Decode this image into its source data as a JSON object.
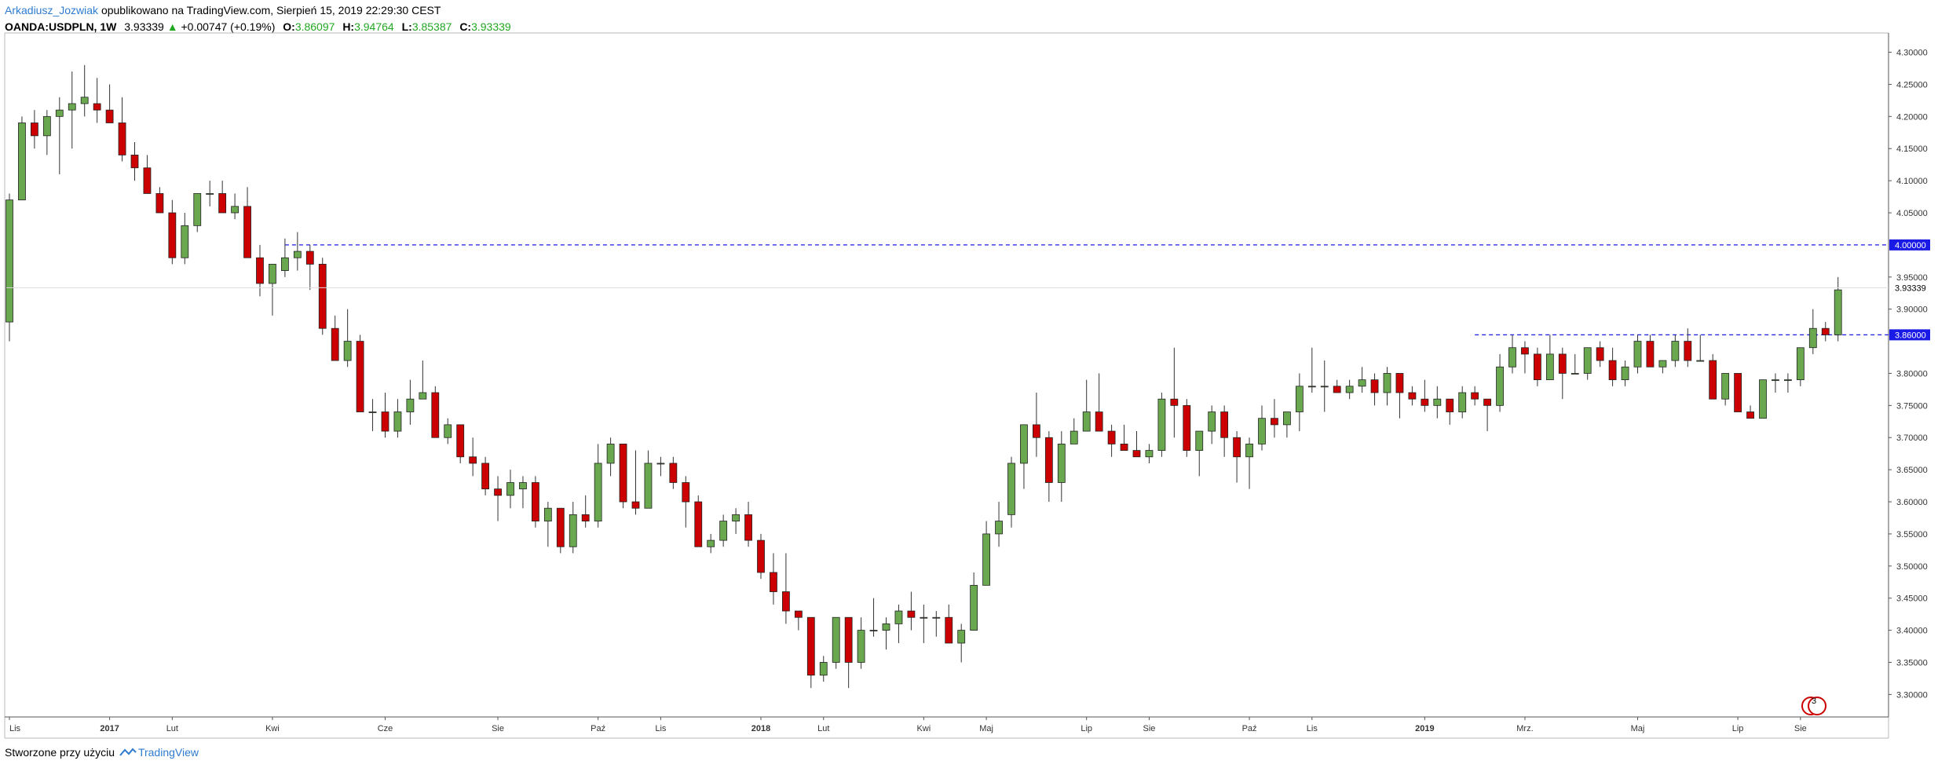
{
  "header": {
    "author": "Arkadiusz_Jozwiak",
    "published": "opublikowano na TradingView.com, Sierpień 15, 2019 22:29:30 CEST",
    "symbol": "OANDA:USDPLN, 1W",
    "last": "3.93339",
    "change": "+0.00747 (+0.19%)",
    "o_label": "O:",
    "o_value": "3.86097",
    "h_label": "H:",
    "h_value": "3.94764",
    "l_label": "L:",
    "l_value": "3.85387",
    "c_label": "C:",
    "c_value": "3.93339"
  },
  "footer": {
    "created_with": "Stworzone przy użyciu",
    "brand": "TradingView"
  },
  "events_badge": "3",
  "chart_data": {
    "type": "candlestick",
    "symbol": "OANDA:USDPLN",
    "interval": "1W",
    "y_range": [
      3.265,
      4.33
    ],
    "y_ticks": [
      4.3,
      4.25,
      4.2,
      4.15,
      4.1,
      4.05,
      3.95,
      3.9,
      3.8,
      3.75,
      3.7,
      3.65,
      3.6,
      3.55,
      3.5,
      3.45,
      3.4,
      3.35,
      3.3
    ],
    "x_labels": [
      {
        "i": 0,
        "text": "Lis"
      },
      {
        "i": 8,
        "text": "2017"
      },
      {
        "i": 13,
        "text": "Lut"
      },
      {
        "i": 21,
        "text": "Kwi"
      },
      {
        "i": 30,
        "text": "Cze"
      },
      {
        "i": 39,
        "text": "Sie"
      },
      {
        "i": 47,
        "text": "Paź"
      },
      {
        "i": 52,
        "text": "Lis"
      },
      {
        "i": 60,
        "text": "2018"
      },
      {
        "i": 65,
        "text": "Lut"
      },
      {
        "i": 73,
        "text": "Kwi"
      },
      {
        "i": 78,
        "text": "Maj"
      },
      {
        "i": 86,
        "text": "Lip"
      },
      {
        "i": 91,
        "text": "Sie"
      },
      {
        "i": 99,
        "text": "Paź"
      },
      {
        "i": 104,
        "text": "Lis"
      },
      {
        "i": 113,
        "text": "2019"
      },
      {
        "i": 121,
        "text": "Mrz."
      },
      {
        "i": 130,
        "text": "Maj"
      },
      {
        "i": 138,
        "text": "Lip"
      },
      {
        "i": 143,
        "text": "Sie"
      }
    ],
    "horizontal_lines": [
      {
        "value": 4.0,
        "label": "4.00000",
        "from_index": 22,
        "color": "#1a1ae6"
      },
      {
        "value": 3.86,
        "label": "3.86000",
        "from_index": 117,
        "color": "#1a1ae6"
      }
    ],
    "last_price": {
      "value": 3.93339,
      "label": "3.93339"
    },
    "colors": {
      "up": "#6aa84f",
      "down": "#cc0000",
      "wick": "#333333",
      "line": "#1a1ae6"
    },
    "candles": [
      [
        3.88,
        4.08,
        3.85,
        4.07
      ],
      [
        4.07,
        4.2,
        4.07,
        4.19
      ],
      [
        4.19,
        4.21,
        4.15,
        4.17
      ],
      [
        4.17,
        4.21,
        4.14,
        4.2
      ],
      [
        4.2,
        4.23,
        4.11,
        4.21
      ],
      [
        4.21,
        4.27,
        4.15,
        4.22
      ],
      [
        4.22,
        4.28,
        4.2,
        4.23
      ],
      [
        4.22,
        4.26,
        4.19,
        4.21
      ],
      [
        4.21,
        4.25,
        4.19,
        4.19
      ],
      [
        4.19,
        4.23,
        4.13,
        4.14
      ],
      [
        4.14,
        4.16,
        4.1,
        4.12
      ],
      [
        4.12,
        4.14,
        4.08,
        4.08
      ],
      [
        4.08,
        4.09,
        4.05,
        4.05
      ],
      [
        4.05,
        4.07,
        3.97,
        3.98
      ],
      [
        3.98,
        4.05,
        3.97,
        4.03
      ],
      [
        4.03,
        4.08,
        4.02,
        4.08
      ],
      [
        4.08,
        4.1,
        4.06,
        4.08
      ],
      [
        4.08,
        4.1,
        4.05,
        4.05
      ],
      [
        4.05,
        4.08,
        4.04,
        4.06
      ],
      [
        4.06,
        4.09,
        3.98,
        3.98
      ],
      [
        3.98,
        4.0,
        3.92,
        3.94
      ],
      [
        3.94,
        3.97,
        3.89,
        3.97
      ],
      [
        3.96,
        4.01,
        3.95,
        3.98
      ],
      [
        3.98,
        4.02,
        3.96,
        3.99
      ],
      [
        3.99,
        4.0,
        3.93,
        3.97
      ],
      [
        3.97,
        3.98,
        3.86,
        3.87
      ],
      [
        3.87,
        3.89,
        3.82,
        3.82
      ],
      [
        3.82,
        3.9,
        3.81,
        3.85
      ],
      [
        3.85,
        3.86,
        3.74,
        3.74
      ],
      [
        3.74,
        3.76,
        3.71,
        3.74
      ],
      [
        3.74,
        3.77,
        3.7,
        3.71
      ],
      [
        3.71,
        3.76,
        3.7,
        3.74
      ],
      [
        3.74,
        3.79,
        3.72,
        3.76
      ],
      [
        3.76,
        3.82,
        3.76,
        3.77
      ],
      [
        3.77,
        3.78,
        3.7,
        3.7
      ],
      [
        3.7,
        3.73,
        3.69,
        3.72
      ],
      [
        3.72,
        3.72,
        3.66,
        3.67
      ],
      [
        3.67,
        3.7,
        3.64,
        3.66
      ],
      [
        3.66,
        3.67,
        3.61,
        3.62
      ],
      [
        3.62,
        3.64,
        3.57,
        3.61
      ],
      [
        3.61,
        3.65,
        3.59,
        3.63
      ],
      [
        3.62,
        3.64,
        3.59,
        3.63
      ],
      [
        3.63,
        3.64,
        3.56,
        3.57
      ],
      [
        3.57,
        3.6,
        3.53,
        3.59
      ],
      [
        3.59,
        3.59,
        3.52,
        3.53
      ],
      [
        3.53,
        3.6,
        3.52,
        3.58
      ],
      [
        3.58,
        3.61,
        3.56,
        3.57
      ],
      [
        3.57,
        3.69,
        3.56,
        3.66
      ],
      [
        3.66,
        3.7,
        3.64,
        3.69
      ],
      [
        3.69,
        3.69,
        3.59,
        3.6
      ],
      [
        3.6,
        3.68,
        3.58,
        3.59
      ],
      [
        3.59,
        3.68,
        3.59,
        3.66
      ],
      [
        3.66,
        3.67,
        3.64,
        3.66
      ],
      [
        3.66,
        3.67,
        3.62,
        3.63
      ],
      [
        3.63,
        3.64,
        3.56,
        3.6
      ],
      [
        3.6,
        3.61,
        3.53,
        3.53
      ],
      [
        3.53,
        3.55,
        3.52,
        3.54
      ],
      [
        3.54,
        3.58,
        3.53,
        3.57
      ],
      [
        3.57,
        3.59,
        3.55,
        3.58
      ],
      [
        3.58,
        3.6,
        3.53,
        3.54
      ],
      [
        3.54,
        3.55,
        3.48,
        3.49
      ],
      [
        3.49,
        3.52,
        3.44,
        3.46
      ],
      [
        3.46,
        3.52,
        3.41,
        3.43
      ],
      [
        3.43,
        3.43,
        3.4,
        3.42
      ],
      [
        3.42,
        3.42,
        3.31,
        3.33
      ],
      [
        3.33,
        3.36,
        3.32,
        3.35
      ],
      [
        3.35,
        3.42,
        3.34,
        3.42
      ],
      [
        3.42,
        3.42,
        3.31,
        3.35
      ],
      [
        3.35,
        3.42,
        3.34,
        3.4
      ],
      [
        3.4,
        3.45,
        3.39,
        3.4
      ],
      [
        3.4,
        3.42,
        3.37,
        3.41
      ],
      [
        3.41,
        3.44,
        3.38,
        3.43
      ],
      [
        3.43,
        3.46,
        3.4,
        3.42
      ],
      [
        3.42,
        3.44,
        3.38,
        3.42
      ],
      [
        3.42,
        3.43,
        3.39,
        3.42
      ],
      [
        3.42,
        3.44,
        3.38,
        3.38
      ],
      [
        3.38,
        3.41,
        3.35,
        3.4
      ],
      [
        3.4,
        3.49,
        3.4,
        3.47
      ],
      [
        3.47,
        3.57,
        3.47,
        3.55
      ],
      [
        3.55,
        3.6,
        3.53,
        3.57
      ],
      [
        3.58,
        3.67,
        3.56,
        3.66
      ],
      [
        3.66,
        3.72,
        3.62,
        3.72
      ],
      [
        3.72,
        3.77,
        3.67,
        3.7
      ],
      [
        3.7,
        3.71,
        3.6,
        3.63
      ],
      [
        3.63,
        3.71,
        3.6,
        3.69
      ],
      [
        3.69,
        3.73,
        3.69,
        3.71
      ],
      [
        3.71,
        3.79,
        3.71,
        3.74
      ],
      [
        3.74,
        3.8,
        3.71,
        3.71
      ],
      [
        3.71,
        3.72,
        3.67,
        3.69
      ],
      [
        3.69,
        3.72,
        3.68,
        3.68
      ],
      [
        3.68,
        3.71,
        3.67,
        3.67
      ],
      [
        3.67,
        3.69,
        3.66,
        3.68
      ],
      [
        3.68,
        3.77,
        3.67,
        3.76
      ],
      [
        3.76,
        3.84,
        3.7,
        3.75
      ],
      [
        3.75,
        3.76,
        3.67,
        3.68
      ],
      [
        3.68,
        3.71,
        3.64,
        3.71
      ],
      [
        3.71,
        3.75,
        3.69,
        3.74
      ],
      [
        3.74,
        3.75,
        3.67,
        3.7
      ],
      [
        3.7,
        3.71,
        3.63,
        3.67
      ],
      [
        3.67,
        3.7,
        3.62,
        3.69
      ],
      [
        3.69,
        3.75,
        3.68,
        3.73
      ],
      [
        3.73,
        3.76,
        3.7,
        3.72
      ],
      [
        3.72,
        3.74,
        3.7,
        3.74
      ],
      [
        3.74,
        3.8,
        3.71,
        3.78
      ],
      [
        3.78,
        3.84,
        3.77,
        3.78
      ],
      [
        3.78,
        3.82,
        3.74,
        3.78
      ],
      [
        3.78,
        3.79,
        3.77,
        3.77
      ],
      [
        3.77,
        3.79,
        3.76,
        3.78
      ],
      [
        3.78,
        3.81,
        3.77,
        3.79
      ],
      [
        3.79,
        3.8,
        3.75,
        3.77
      ],
      [
        3.77,
        3.81,
        3.75,
        3.8
      ],
      [
        3.8,
        3.8,
        3.73,
        3.77
      ],
      [
        3.77,
        3.78,
        3.75,
        3.76
      ],
      [
        3.76,
        3.79,
        3.74,
        3.75
      ],
      [
        3.75,
        3.78,
        3.73,
        3.76
      ],
      [
        3.76,
        3.76,
        3.72,
        3.74
      ],
      [
        3.74,
        3.78,
        3.73,
        3.77
      ],
      [
        3.77,
        3.78,
        3.75,
        3.76
      ],
      [
        3.76,
        3.76,
        3.71,
        3.75
      ],
      [
        3.75,
        3.83,
        3.74,
        3.81
      ],
      [
        3.81,
        3.86,
        3.8,
        3.84
      ],
      [
        3.84,
        3.85,
        3.8,
        3.83
      ],
      [
        3.83,
        3.84,
        3.78,
        3.79
      ],
      [
        3.79,
        3.86,
        3.79,
        3.83
      ],
      [
        3.83,
        3.84,
        3.76,
        3.8
      ],
      [
        3.8,
        3.83,
        3.8,
        3.8
      ],
      [
        3.8,
        3.84,
        3.79,
        3.84
      ],
      [
        3.84,
        3.85,
        3.81,
        3.82
      ],
      [
        3.82,
        3.84,
        3.78,
        3.79
      ],
      [
        3.79,
        3.82,
        3.78,
        3.81
      ],
      [
        3.81,
        3.86,
        3.8,
        3.85
      ],
      [
        3.85,
        3.86,
        3.81,
        3.81
      ],
      [
        3.81,
        3.82,
        3.8,
        3.82
      ],
      [
        3.82,
        3.86,
        3.81,
        3.85
      ],
      [
        3.85,
        3.87,
        3.81,
        3.82
      ],
      [
        3.82,
        3.86,
        3.82,
        3.82
      ],
      [
        3.82,
        3.83,
        3.76,
        3.76
      ],
      [
        3.76,
        3.8,
        3.75,
        3.8
      ],
      [
        3.8,
        3.8,
        3.74,
        3.74
      ],
      [
        3.74,
        3.75,
        3.73,
        3.73
      ],
      [
        3.73,
        3.79,
        3.73,
        3.79
      ],
      [
        3.79,
        3.8,
        3.77,
        3.79
      ],
      [
        3.79,
        3.8,
        3.77,
        3.79
      ],
      [
        3.79,
        3.84,
        3.78,
        3.84
      ],
      [
        3.84,
        3.9,
        3.83,
        3.87
      ],
      [
        3.87,
        3.88,
        3.85,
        3.86
      ],
      [
        3.86,
        3.95,
        3.85,
        3.93
      ]
    ]
  }
}
